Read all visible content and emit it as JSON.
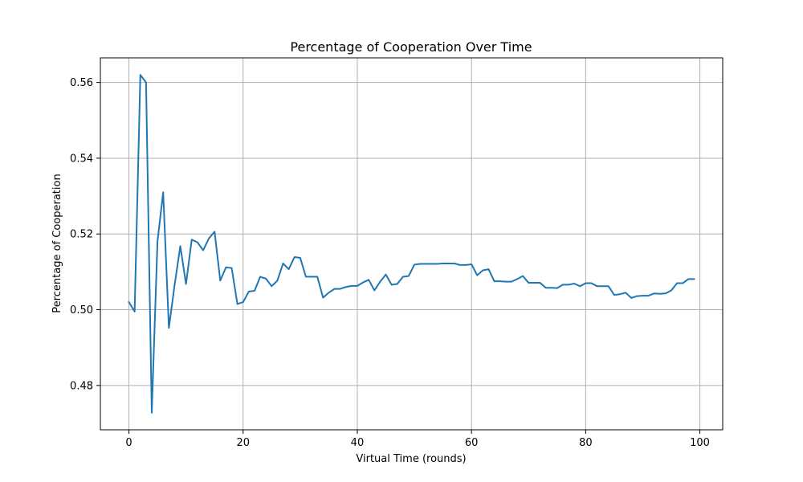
{
  "chart_data": {
    "type": "line",
    "title": "Percentage of Cooperation Over Time",
    "xlabel": "Virtual Time (rounds)",
    "ylabel": "Percentage of Cooperation",
    "xlim": [
      -5,
      104
    ],
    "ylim": [
      0.4683,
      0.5665
    ],
    "xticks": [
      0,
      20,
      40,
      60,
      80,
      100
    ],
    "yticks": [
      0.48,
      0.5,
      0.52,
      0.54,
      0.56
    ],
    "ytick_labels": [
      "0.48",
      "0.50",
      "0.52",
      "0.54",
      "0.56"
    ],
    "grid": true,
    "colors": {
      "line": "#1f77b4",
      "grid": "#b0b0b0",
      "axis": "#000000"
    },
    "series": [
      {
        "x": [
          0,
          1,
          2,
          3,
          4,
          5,
          6,
          7,
          8,
          9,
          10,
          11,
          12,
          13,
          14,
          15,
          16,
          17,
          18,
          19,
          20,
          21,
          22,
          23,
          24,
          25,
          26,
          27,
          28,
          29,
          30,
          31,
          32,
          33,
          34,
          35,
          36,
          37,
          38,
          39,
          40,
          41,
          42,
          43,
          44,
          45,
          46,
          47,
          48,
          49,
          50,
          51,
          52,
          53,
          54,
          55,
          56,
          57,
          58,
          59,
          60,
          61,
          62,
          63,
          64,
          65,
          66,
          67,
          68,
          69,
          70,
          71,
          72,
          73,
          74,
          75,
          76,
          77,
          78,
          79,
          80,
          81,
          82,
          83,
          84,
          85,
          86,
          87,
          88,
          89,
          90,
          91,
          92,
          93,
          94,
          95,
          96,
          97,
          98,
          99
        ],
        "values": [
          0.502,
          0.4995,
          0.562,
          0.56,
          0.4728,
          0.518,
          0.531,
          0.4952,
          0.5065,
          0.5168,
          0.5068,
          0.5185,
          0.5178,
          0.5157,
          0.5188,
          0.5206,
          0.5077,
          0.5112,
          0.511,
          0.5015,
          0.502,
          0.5048,
          0.505,
          0.5087,
          0.5082,
          0.5062,
          0.5077,
          0.5122,
          0.5107,
          0.5139,
          0.5137,
          0.5087,
          0.5087,
          0.5087,
          0.5032,
          0.5045,
          0.5055,
          0.5055,
          0.506,
          0.5063,
          0.5063,
          0.5072,
          0.5079,
          0.5051,
          0.5074,
          0.5093,
          0.5066,
          0.5068,
          0.5087,
          0.5089,
          0.5119,
          0.5121,
          0.5121,
          0.5121,
          0.5121,
          0.5122,
          0.5122,
          0.5122,
          0.5118,
          0.5118,
          0.512,
          0.5091,
          0.5104,
          0.5107,
          0.5075,
          0.5075,
          0.5074,
          0.5074,
          0.5081,
          0.5089,
          0.5071,
          0.5071,
          0.5071,
          0.5058,
          0.5058,
          0.5057,
          0.5066,
          0.5066,
          0.5069,
          0.5062,
          0.507,
          0.507,
          0.5062,
          0.5062,
          0.5062,
          0.5039,
          0.5041,
          0.5045,
          0.5031,
          0.5036,
          0.5037,
          0.5037,
          0.5043,
          0.5042,
          0.5043,
          0.5051,
          0.507,
          0.507,
          0.5081,
          0.5081
        ]
      }
    ]
  }
}
